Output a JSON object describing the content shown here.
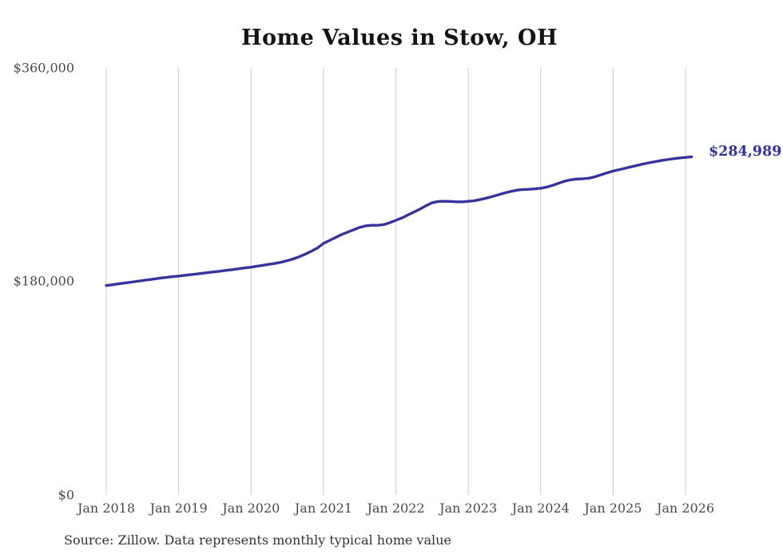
{
  "page": {
    "background_color": "#ffffff"
  },
  "chart_data": {
    "type": "line",
    "title": "Home Values in Stow, OH",
    "source_note": "Source: Zillow. Data represents monthly typical home value",
    "end_label": "$284,989",
    "latest_value": 284989,
    "xlabel": "",
    "ylabel": "",
    "x_ticks": [
      "Jan 2018",
      "Jan 2019",
      "Jan 2020",
      "Jan 2021",
      "Jan 2022",
      "Jan 2023",
      "Jan 2024",
      "Jan 2025",
      "Jan 2026"
    ],
    "y_ticks": [
      {
        "label": "$0",
        "value": 0
      },
      {
        "label": "$180,000",
        "value": 180000
      },
      {
        "label": "$360,000",
        "value": 360000
      }
    ],
    "ylim": [
      0,
      360000
    ],
    "grid": "vertical-only",
    "gridline_color": "#cccccc",
    "legend": "none",
    "line_color": "#37339a",
    "end_label_color": "#333399",
    "series": [
      {
        "name": "Monthly typical home value",
        "interval": "monthly",
        "start": "Jan 2018",
        "end": "Feb 2026",
        "values": [
          176500,
          177200,
          177900,
          178600,
          179300,
          180000,
          180700,
          181400,
          182100,
          182800,
          183400,
          184000,
          184500,
          185100,
          185700,
          186300,
          186900,
          187500,
          188100,
          188700,
          189400,
          190000,
          190700,
          191400,
          192000,
          192800,
          193600,
          194400,
          195200,
          196200,
          197500,
          199000,
          200800,
          203000,
          205500,
          208200,
          212000,
          214500,
          217000,
          219500,
          221500,
          223500,
          225500,
          226800,
          227300,
          227300,
          227900,
          229500,
          231500,
          233500,
          236000,
          238500,
          241000,
          243800,
          246300,
          247300,
          247600,
          247400,
          247100,
          247100,
          247500,
          248000,
          249000,
          250200,
          251600,
          253000,
          254500,
          255800,
          256800,
          257400,
          257600,
          258000,
          258500,
          259500,
          261000,
          262800,
          264500,
          265700,
          266300,
          266500,
          267000,
          268200,
          269800,
          271500,
          273000,
          274200,
          275400,
          276600,
          277800,
          279000,
          280000,
          281000,
          281900,
          282700,
          283400,
          284000,
          284500,
          284989
        ]
      }
    ]
  }
}
